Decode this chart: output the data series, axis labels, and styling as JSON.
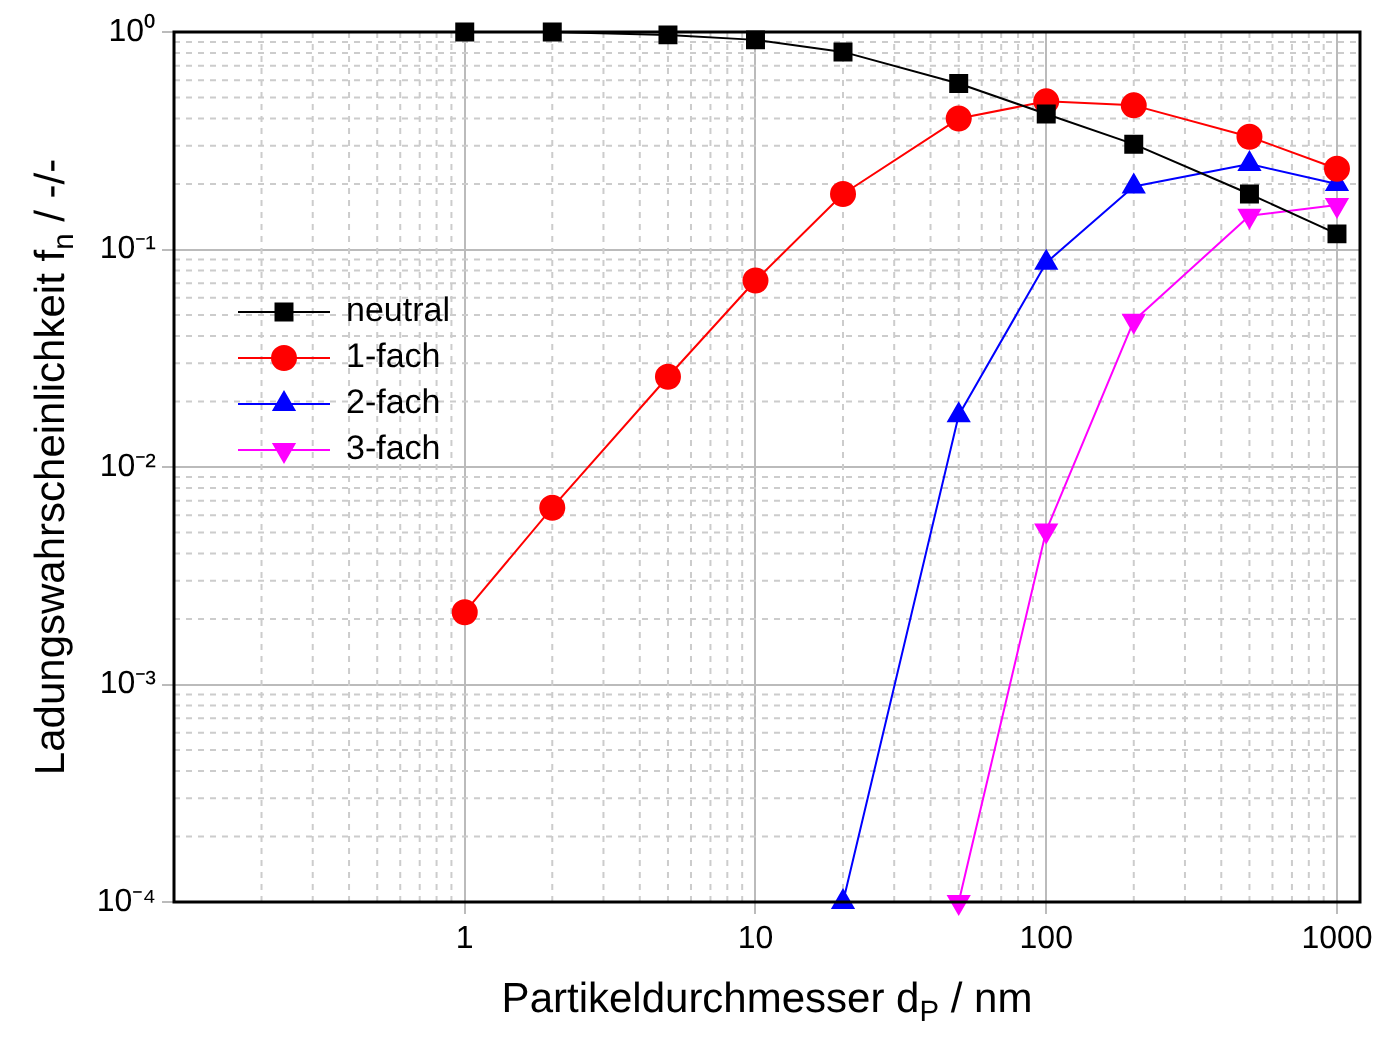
{
  "chart_data": {
    "type": "line",
    "xlabel": "Partikeldurchmesser d$_{P}$ / nm",
    "ylabel": "Ladungswahrscheinlichkeit f$_{n}$ / -/-",
    "x": [
      1,
      2,
      5,
      10,
      20,
      50,
      100,
      200,
      500,
      1000
    ],
    "series": [
      {
        "name": "neutral",
        "color": "#000000",
        "marker": "square",
        "values": [
          1.0,
          1.0,
          0.97,
          0.92,
          0.81,
          0.58,
          0.42,
          0.305,
          0.18,
          0.118
        ]
      },
      {
        "name": "1-fach",
        "color": "#ff0000",
        "marker": "circle",
        "values": [
          0.00215,
          0.0065,
          0.026,
          0.072,
          0.18,
          0.4,
          0.48,
          0.46,
          0.33,
          0.235
        ]
      },
      {
        "name": "2-fach",
        "color": "#0000ff",
        "marker": "triangle",
        "values": [
          null,
          null,
          null,
          null,
          0.0001,
          0.0173,
          0.087,
          0.195,
          0.247,
          0.2
        ]
      },
      {
        "name": "3-fach",
        "color": "#ff00ff",
        "marker": "triangle-down",
        "values": [
          null,
          null,
          null,
          null,
          null,
          0.0001,
          0.0051,
          0.047,
          0.143,
          0.16
        ]
      }
    ],
    "log": "xy",
    "xlim": [
      0.1,
      1200
    ],
    "xticks": [
      1,
      10,
      100,
      1000
    ],
    "ylim": [
      0.0001,
      1
    ],
    "yticks": [
      {
        "value": 0.0001,
        "label": "10⁻⁴"
      },
      {
        "value": 0.001,
        "label": "10⁻³"
      },
      {
        "value": 0.01,
        "label": "10⁻²"
      },
      {
        "value": 0.1,
        "label": "10⁻¹"
      },
      {
        "value": 1,
        "label": "10⁰"
      }
    ],
    "grid": true,
    "legend": "top left",
    "line_style": "solid"
  }
}
